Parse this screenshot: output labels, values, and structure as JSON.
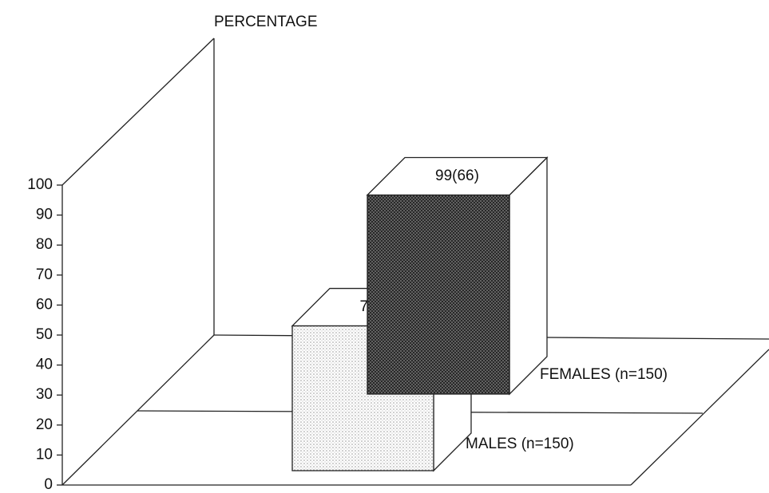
{
  "chart_data": {
    "type": "bar3d",
    "y_label": "PERCENTAGE",
    "categories": [
      "MALES (n=150)",
      "FEMALES (n=150)"
    ],
    "values": [
      72,
      99
    ],
    "value_labels": [
      "72(48)",
      "99(66)"
    ],
    "colors": [
      "#d8d8d8",
      "#4a4a4a"
    ],
    "ylim": [
      0,
      100
    ],
    "yticks": [
      0,
      10,
      20,
      30,
      40,
      50,
      60,
      70,
      80,
      90,
      100
    ]
  }
}
